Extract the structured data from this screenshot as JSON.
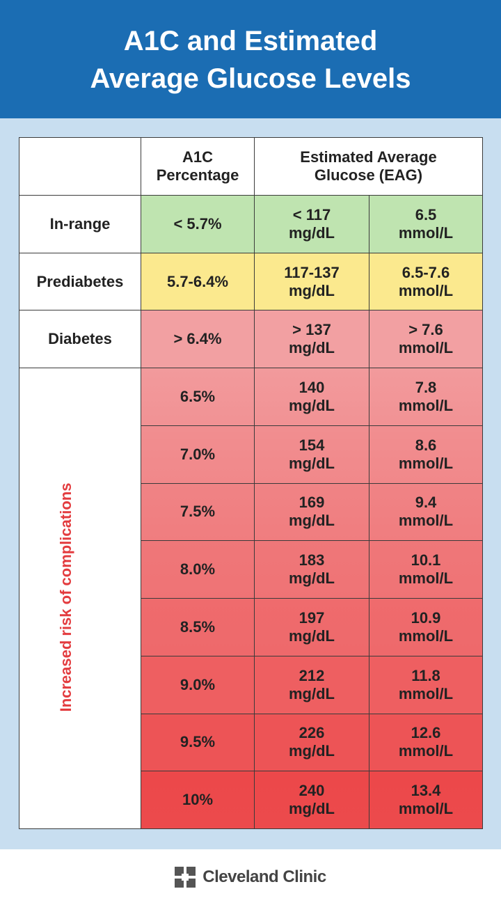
{
  "header": {
    "title": [
      "A1C and Estimated",
      "Average Glucose Levels"
    ]
  },
  "table": {
    "columns": [
      [
        "A1C",
        "Percentage"
      ],
      [
        "Estimated Average",
        "Glucose (EAG)"
      ]
    ],
    "rows": [
      {
        "label": "In-range",
        "a1c": [
          "< 5.7%"
        ],
        "mgdl": [
          "< 117",
          "mg/dL"
        ],
        "mmol": [
          "6.5",
          "mmol/L"
        ]
      },
      {
        "label": "Prediabetes",
        "a1c": [
          "5.7-6.4%"
        ],
        "mgdl": [
          "117-137",
          "mg/dL"
        ],
        "mmol": [
          "6.5-7.6",
          "mmol/L"
        ]
      },
      {
        "label": "Diabetes",
        "a1c": [
          "> 6.4%"
        ],
        "mgdl": [
          "> 137",
          "mg/dL"
        ],
        "mmol": [
          "> 7.6",
          "mmol/L"
        ]
      }
    ],
    "side_note": "Increased risk of complications",
    "complication_rows": [
      {
        "a1c": [
          "6.5%"
        ],
        "mgdl": [
          "140",
          "mg/dL"
        ],
        "mmol": [
          "7.8",
          "mmol/L"
        ]
      },
      {
        "a1c": [
          "7.0%"
        ],
        "mgdl": [
          "154",
          "mg/dL"
        ],
        "mmol": [
          "8.6",
          "mmol/L"
        ]
      },
      {
        "a1c": [
          "7.5%"
        ],
        "mgdl": [
          "169",
          "mg/dL"
        ],
        "mmol": [
          "9.4",
          "mmol/L"
        ]
      },
      {
        "a1c": [
          "8.0%"
        ],
        "mgdl": [
          "183",
          "mg/dL"
        ],
        "mmol": [
          "10.1",
          "mmol/L"
        ]
      },
      {
        "a1c": [
          "8.5%"
        ],
        "mgdl": [
          "197",
          "mg/dL"
        ],
        "mmol": [
          "10.9",
          "mmol/L"
        ]
      },
      {
        "a1c": [
          "9.0%"
        ],
        "mgdl": [
          "212",
          "mg/dL"
        ],
        "mmol": [
          "11.8",
          "mmol/L"
        ]
      },
      {
        "a1c": [
          "9.5%"
        ],
        "mgdl": [
          "226",
          "mg/dL"
        ],
        "mmol": [
          "12.6",
          "mmol/L"
        ]
      },
      {
        "a1c": [
          "10%"
        ],
        "mgdl": [
          "240",
          "mg/dL"
        ],
        "mmol": [
          "13.4",
          "mmol/L"
        ]
      }
    ]
  },
  "footer": {
    "brand": "Cleveland Clinic"
  }
}
